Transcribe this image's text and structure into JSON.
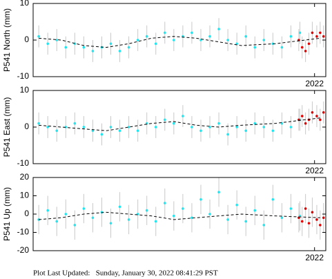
{
  "chart_data": [
    {
      "type": "scatter",
      "y_label": "P541 North (mm)",
      "xlim": [
        2019.5,
        2022.1
      ],
      "xticks": [
        2022
      ],
      "ylim": [
        -10,
        10
      ],
      "yticks": [
        -10,
        0,
        10
      ],
      "series": [
        {
          "color": "#22e5f0",
          "error_color": "#c8c8c8",
          "error": 3,
          "x": [
            2019.55,
            2019.63,
            2019.71,
            2019.79,
            2019.87,
            2019.95,
            2020.03,
            2020.11,
            2020.19,
            2020.27,
            2020.35,
            2020.43,
            2020.51,
            2020.59,
            2020.67,
            2020.75,
            2020.83,
            2020.91,
            2020.99,
            2021.07,
            2021.15,
            2021.23,
            2021.31,
            2021.39,
            2021.47,
            2021.55,
            2021.63,
            2021.71,
            2021.79,
            2021.87
          ],
          "values": [
            1,
            -1,
            0,
            -2,
            -1,
            -2,
            -3,
            -2,
            -1,
            -3,
            -2,
            0,
            1,
            -1,
            2,
            0,
            1,
            2,
            0,
            1,
            3,
            0,
            -1,
            1,
            -2,
            0,
            -1,
            -2,
            1,
            2
          ]
        },
        {
          "color": "#e00000",
          "error_color": "#c8c8c8",
          "error": 3,
          "x": [
            2021.86,
            2021.89,
            2021.92,
            2021.95,
            2021.98,
            2022.02,
            2022.05,
            2022.08
          ],
          "values": [
            0,
            -2,
            -3,
            -1,
            2,
            1,
            2,
            1
          ]
        },
        {
          "color": "#000000",
          "line": "dashed",
          "x": [
            2019.55,
            2019.75,
            2019.95,
            2020.15,
            2020.35,
            2020.55,
            2020.75,
            2020.95,
            2021.15,
            2021.35,
            2021.65,
            2022.05
          ],
          "values": [
            0.5,
            0,
            -1.5,
            -2,
            -1,
            0.5,
            1,
            0.5,
            -0.5,
            -1.5,
            -1,
            0.5
          ]
        }
      ]
    },
    {
      "type": "scatter",
      "y_label": "P541 East (mm)",
      "xlim": [
        2019.5,
        2022.1
      ],
      "xticks": [
        2022
      ],
      "ylim": [
        -10,
        10
      ],
      "yticks": [
        -10,
        0,
        10
      ],
      "series": [
        {
          "color": "#22e5f0",
          "error_color": "#c8c8c8",
          "error": 3,
          "x": [
            2019.55,
            2019.63,
            2019.71,
            2019.79,
            2019.87,
            2019.95,
            2020.03,
            2020.11,
            2020.19,
            2020.27,
            2020.35,
            2020.43,
            2020.51,
            2020.59,
            2020.67,
            2020.75,
            2020.83,
            2020.91,
            2020.99,
            2021.07,
            2021.15,
            2021.23,
            2021.31,
            2021.39,
            2021.47,
            2021.55,
            2021.63,
            2021.71,
            2021.79,
            2021.87
          ],
          "values": [
            1,
            0,
            -1,
            0,
            1,
            0,
            -1,
            -2,
            0,
            -1,
            0,
            -1,
            1,
            0,
            2,
            1,
            3,
            0,
            -1,
            0,
            1,
            -2,
            0,
            -1,
            1,
            0,
            -1,
            1,
            0,
            2
          ]
        },
        {
          "color": "#e00000",
          "error_color": "#c8c8c8",
          "error": 3,
          "x": [
            2021.86,
            2021.89,
            2021.92,
            2021.95,
            2021.98,
            2022.02,
            2022.05,
            2022.08
          ],
          "values": [
            2,
            3,
            1,
            2,
            4,
            3,
            2,
            4
          ]
        },
        {
          "color": "#000000",
          "line": "dashed",
          "x": [
            2019.55,
            2019.75,
            2019.95,
            2020.15,
            2020.35,
            2020.55,
            2020.75,
            2020.95,
            2021.15,
            2021.35,
            2021.65,
            2022.05
          ],
          "values": [
            0.5,
            0,
            -0.5,
            -1,
            0,
            1,
            1.5,
            0.5,
            0,
            0.5,
            1,
            2.5
          ]
        }
      ]
    },
    {
      "type": "scatter",
      "y_label": "P541 Up (mm)",
      "xlim": [
        2019.5,
        2022.1
      ],
      "xticks": [
        2022
      ],
      "ylim": [
        -20,
        20
      ],
      "yticks": [
        -20,
        -10,
        0,
        10,
        20
      ],
      "series": [
        {
          "color": "#22e5f0",
          "error_color": "#c8c8c8",
          "error": 8,
          "x": [
            2019.55,
            2019.63,
            2019.71,
            2019.79,
            2019.87,
            2019.95,
            2020.03,
            2020.11,
            2020.19,
            2020.27,
            2020.35,
            2020.43,
            2020.51,
            2020.59,
            2020.67,
            2020.75,
            2020.83,
            2020.91,
            2020.99,
            2021.07,
            2021.15,
            2021.23,
            2021.31,
            2021.39,
            2021.47,
            2021.55,
            2021.63,
            2021.71,
            2021.79,
            2021.87
          ],
          "values": [
            -3,
            2,
            -4,
            0,
            -6,
            3,
            -2,
            1,
            -5,
            4,
            -3,
            0,
            2,
            -4,
            6,
            -1,
            3,
            -2,
            8,
            0,
            12,
            -3,
            5,
            -4,
            2,
            -6,
            8,
            -2,
            3,
            -1
          ]
        },
        {
          "color": "#e00000",
          "error_color": "#c8c8c8",
          "error": 8,
          "x": [
            2021.86,
            2021.89,
            2021.92,
            2021.95,
            2021.98,
            2022.02,
            2022.05,
            2022.08
          ],
          "values": [
            -2,
            -4,
            3,
            -5,
            1,
            -3,
            -6,
            -2
          ]
        },
        {
          "color": "#000000",
          "line": "dashed",
          "x": [
            2019.55,
            2019.75,
            2019.95,
            2020.15,
            2020.35,
            2020.55,
            2020.75,
            2020.95,
            2021.15,
            2021.35,
            2021.65,
            2022.05
          ],
          "values": [
            -3,
            -2,
            0,
            1,
            0,
            -1,
            -3,
            -2,
            -1,
            0,
            -1,
            -2
          ]
        }
      ]
    }
  ],
  "footer": "Plot Last Updated:   Sunday, January 30, 2022 08:41:29 PST"
}
